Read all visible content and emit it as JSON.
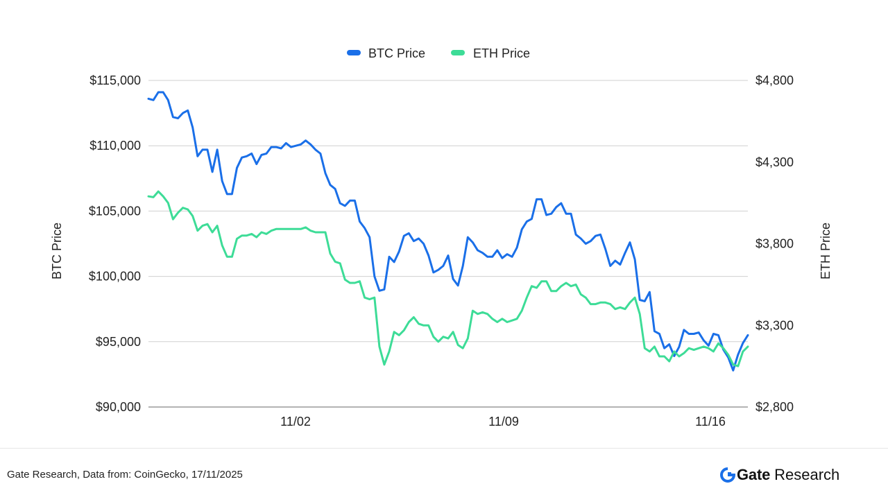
{
  "chart_data": {
    "type": "line",
    "legend_position": "top-center",
    "grid": true,
    "x_ticks": [
      "11/02",
      "11/09",
      "11/16"
    ],
    "y_left": {
      "label": "BTC Price",
      "ylim": [
        90000,
        115000
      ],
      "ticks": [
        "$90,000",
        "$95,000",
        "$100,000",
        "$105,000",
        "$110,000",
        "$115,000"
      ]
    },
    "y_right": {
      "label": "ETH Price",
      "ylim": [
        2800,
        4800
      ],
      "ticks": [
        "$2,800",
        "$3,300",
        "$3,800",
        "$4,300",
        "$4,800"
      ]
    },
    "series": [
      {
        "name": "BTC Price",
        "axis": "left",
        "color": "#1a6fe8",
        "values": [
          113600,
          113500,
          114100,
          114100,
          113500,
          112200,
          112100,
          112500,
          112700,
          111400,
          109200,
          109700,
          109700,
          108000,
          109700,
          107300,
          106300,
          106300,
          108300,
          109100,
          109200,
          109400,
          108600,
          109300,
          109400,
          109900,
          109900,
          109800,
          110200,
          109900,
          110000,
          110100,
          110400,
          110100,
          109700,
          109400,
          107900,
          107000,
          106700,
          105600,
          105400,
          105800,
          105800,
          104200,
          103700,
          103000,
          100000,
          98900,
          99000,
          101500,
          101100,
          101900,
          103100,
          103300,
          102700,
          102900,
          102500,
          101600,
          100300,
          100500,
          100800,
          101600,
          99800,
          99300,
          100800,
          103000,
          102600,
          102000,
          101800,
          101500,
          101500,
          102000,
          101400,
          101700,
          101500,
          102200,
          103600,
          104200,
          104400,
          105900,
          105900,
          104700,
          104800,
          105300,
          105600,
          104800,
          104800,
          103200,
          102900,
          102500,
          102700,
          103100,
          103200,
          102100,
          100800,
          101200,
          100900,
          101800,
          102600,
          101300,
          98200,
          98100,
          98800,
          95800,
          95600,
          94500,
          94800,
          93900,
          94600,
          95900,
          95600,
          95600,
          95700,
          95100,
          94700,
          95600,
          95500,
          94400,
          93800,
          92800,
          94000,
          94900,
          95500
        ]
      },
      {
        "name": "ETH Price",
        "axis": "right",
        "color": "#3ddc97",
        "values": [
          4090,
          4085,
          4120,
          4090,
          4050,
          3950,
          3990,
          4020,
          4010,
          3970,
          3880,
          3910,
          3920,
          3870,
          3910,
          3790,
          3720,
          3720,
          3830,
          3850,
          3850,
          3860,
          3840,
          3870,
          3860,
          3880,
          3890,
          3890,
          3890,
          3890,
          3890,
          3890,
          3900,
          3880,
          3870,
          3870,
          3870,
          3740,
          3690,
          3680,
          3580,
          3560,
          3560,
          3570,
          3470,
          3460,
          3470,
          3170,
          3060,
          3140,
          3260,
          3240,
          3270,
          3320,
          3350,
          3310,
          3300,
          3300,
          3230,
          3200,
          3230,
          3220,
          3260,
          3180,
          3160,
          3220,
          3390,
          3370,
          3380,
          3370,
          3340,
          3320,
          3340,
          3320,
          3330,
          3340,
          3390,
          3470,
          3540,
          3530,
          3570,
          3570,
          3510,
          3510,
          3540,
          3560,
          3540,
          3550,
          3490,
          3470,
          3430,
          3430,
          3440,
          3440,
          3430,
          3400,
          3410,
          3400,
          3440,
          3470,
          3370,
          3160,
          3140,
          3170,
          3110,
          3110,
          3080,
          3140,
          3110,
          3130,
          3160,
          3150,
          3160,
          3170,
          3160,
          3140,
          3190,
          3160,
          3120,
          3060,
          3050,
          3140,
          3170
        ]
      }
    ]
  },
  "footer": {
    "note": "Gate Research, Data from: CoinGecko, 17/11/2025",
    "brand_strong": "Gate",
    "brand_light": "Research",
    "brand_color": "#1a6fe8"
  }
}
